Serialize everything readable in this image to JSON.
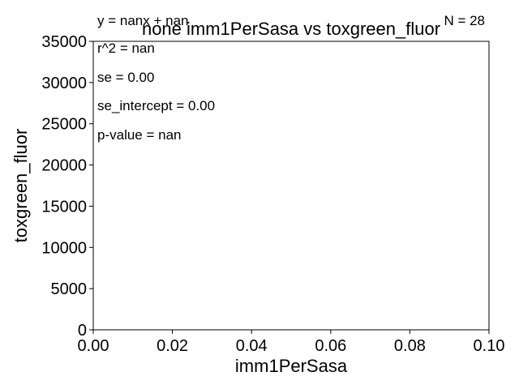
{
  "chart_data": {
    "type": "scatter",
    "title": "none imm1PerSasa vs toxgreen_fluor",
    "xlabel": "imm1PerSasa",
    "ylabel": "toxgreen_fluor",
    "xlim": [
      0.0,
      0.1
    ],
    "ylim": [
      0,
      35000
    ],
    "x_ticks": [
      "0.00",
      "0.02",
      "0.04",
      "0.06",
      "0.08",
      "0.10"
    ],
    "y_ticks": [
      "0",
      "5000",
      "10000",
      "15000",
      "20000",
      "25000",
      "30000",
      "35000"
    ],
    "grid": false,
    "annotations": {
      "equation": "y = nanx + nan",
      "n": "N = 28",
      "r2": "r^2 = nan",
      "se": "se = 0.00",
      "se_intercept": "se_intercept = 0.00",
      "p_value": "p-value = nan"
    },
    "points": []
  }
}
